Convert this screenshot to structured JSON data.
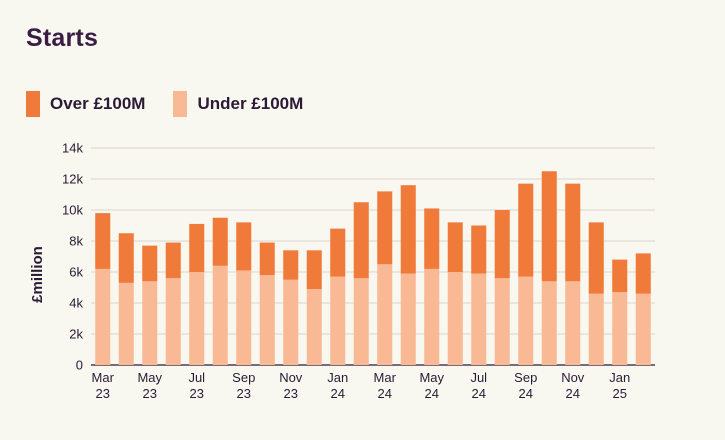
{
  "title": "Starts",
  "colors": {
    "over": "#f07a3a",
    "under": "#f9b995",
    "grid": "#d9d6cd",
    "axis": "#2b1a35"
  },
  "legend": [
    {
      "label": "Over £100M",
      "color": "#f07a3a"
    },
    {
      "label": "Under £100M",
      "color": "#f9b995"
    }
  ],
  "chart_data": {
    "type": "bar",
    "stacked": true,
    "title": "Starts",
    "ylabel": "£million",
    "xlabel": "",
    "ylim": [
      0,
      14000
    ],
    "yticks": [
      "0",
      "2k",
      "4k",
      "6k",
      "8k",
      "10k",
      "12k",
      "14k"
    ],
    "grid": true,
    "legend_position": "top-left",
    "categories": [
      "Mar 23",
      "Apr 23",
      "May 23",
      "Jun 23",
      "Jul 23",
      "Aug 23",
      "Sep 23",
      "Oct 23",
      "Nov 23",
      "Dec 23",
      "Jan 24",
      "Feb 24",
      "Mar 24",
      "Apr 24",
      "May 24",
      "Jun 24",
      "Jul 24",
      "Aug 24",
      "Sep 24",
      "Oct 24",
      "Nov 24",
      "Dec 24",
      "Jan 25",
      "Feb 25"
    ],
    "xtick_labels": [
      {
        "index": 0,
        "top": "Mar",
        "bottom": "23"
      },
      {
        "index": 2,
        "top": "May",
        "bottom": "23"
      },
      {
        "index": 4,
        "top": "Jul",
        "bottom": "23"
      },
      {
        "index": 6,
        "top": "Sep",
        "bottom": "23"
      },
      {
        "index": 8,
        "top": "Nov",
        "bottom": "23"
      },
      {
        "index": 10,
        "top": "Jan",
        "bottom": "24"
      },
      {
        "index": 12,
        "top": "Mar",
        "bottom": "24"
      },
      {
        "index": 14,
        "top": "May",
        "bottom": "24"
      },
      {
        "index": 16,
        "top": "Jul",
        "bottom": "24"
      },
      {
        "index": 18,
        "top": "Sep",
        "bottom": "24"
      },
      {
        "index": 20,
        "top": "Nov",
        "bottom": "24"
      },
      {
        "index": 22,
        "top": "Jan",
        "bottom": "25"
      }
    ],
    "series": [
      {
        "name": "Under £100M",
        "color": "#f9b995",
        "values": [
          6200,
          5300,
          5400,
          5600,
          6000,
          6400,
          6100,
          5800,
          5500,
          4900,
          5700,
          5600,
          6500,
          5900,
          6200,
          6000,
          5900,
          5600,
          5700,
          5400,
          5400,
          4600,
          4700,
          4600
        ]
      },
      {
        "name": "Over £100M",
        "color": "#f07a3a",
        "values": [
          3600,
          3200,
          2300,
          2300,
          3100,
          3100,
          3100,
          2100,
          1900,
          2500,
          3100,
          4900,
          4700,
          5700,
          3900,
          3200,
          3100,
          4400,
          6000,
          7100,
          6300,
          4600,
          2100,
          2600
        ]
      }
    ]
  }
}
